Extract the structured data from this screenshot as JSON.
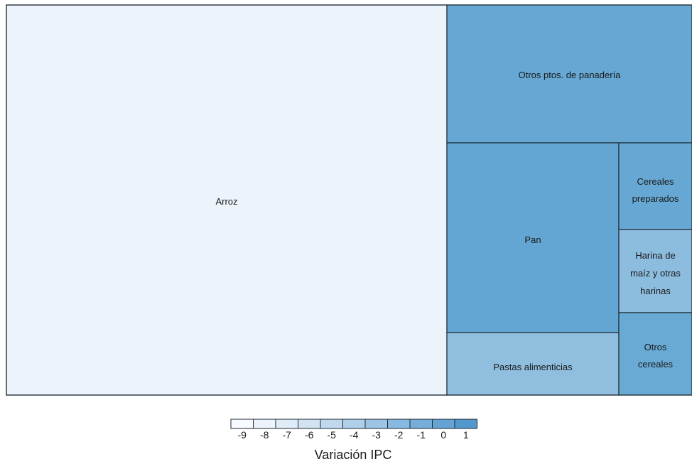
{
  "chart_data": {
    "type": "treemap",
    "title": "",
    "items": [
      {
        "label": "Arroz",
        "lines": [
          "Arroz"
        ],
        "value": -9.0,
        "color": "#ecf3fb"
      },
      {
        "label": "Otros ptos. de panadería",
        "lines": [
          "Otros ptos. de panadería"
        ],
        "value": 0.0,
        "color": "#66a8d3"
      },
      {
        "label": "Pan",
        "lines": [
          "Pan"
        ],
        "value": 0.2,
        "color": "#63a6d3"
      },
      {
        "label": "Pastas alimenticias",
        "lines": [
          "Pastas alimenticias"
        ],
        "value": -3.0,
        "color": "#8fbedf"
      },
      {
        "label": "Cereales preparados",
        "lines": [
          "Cereales",
          "preparados"
        ],
        "value": 0.0,
        "color": "#66a8d3"
      },
      {
        "label": "Harina de maíz y otras harinas",
        "lines": [
          "Harina de",
          "maíz y otras",
          "harinas"
        ],
        "value": -2.5,
        "color": "#8cbcde"
      },
      {
        "label": "Otros cereales",
        "lines": [
          "Otros",
          "cereales"
        ],
        "value": 0.0,
        "color": "#69aad4"
      }
    ],
    "legend": {
      "title": "Variación IPC",
      "ticks": [
        "-9",
        "-8",
        "-7",
        "-6",
        "-5",
        "-4",
        "-3",
        "-2",
        "-1",
        "0",
        "1"
      ],
      "colors": [
        "#f7fbff",
        "#ecf3fb",
        "#e0ecf7",
        "#d1e3f2",
        "#c1d9ee",
        "#b0cfe9",
        "#9dc4e4",
        "#8ab9df",
        "#77aed9",
        "#64a3d3",
        "#5298cd"
      ]
    }
  }
}
